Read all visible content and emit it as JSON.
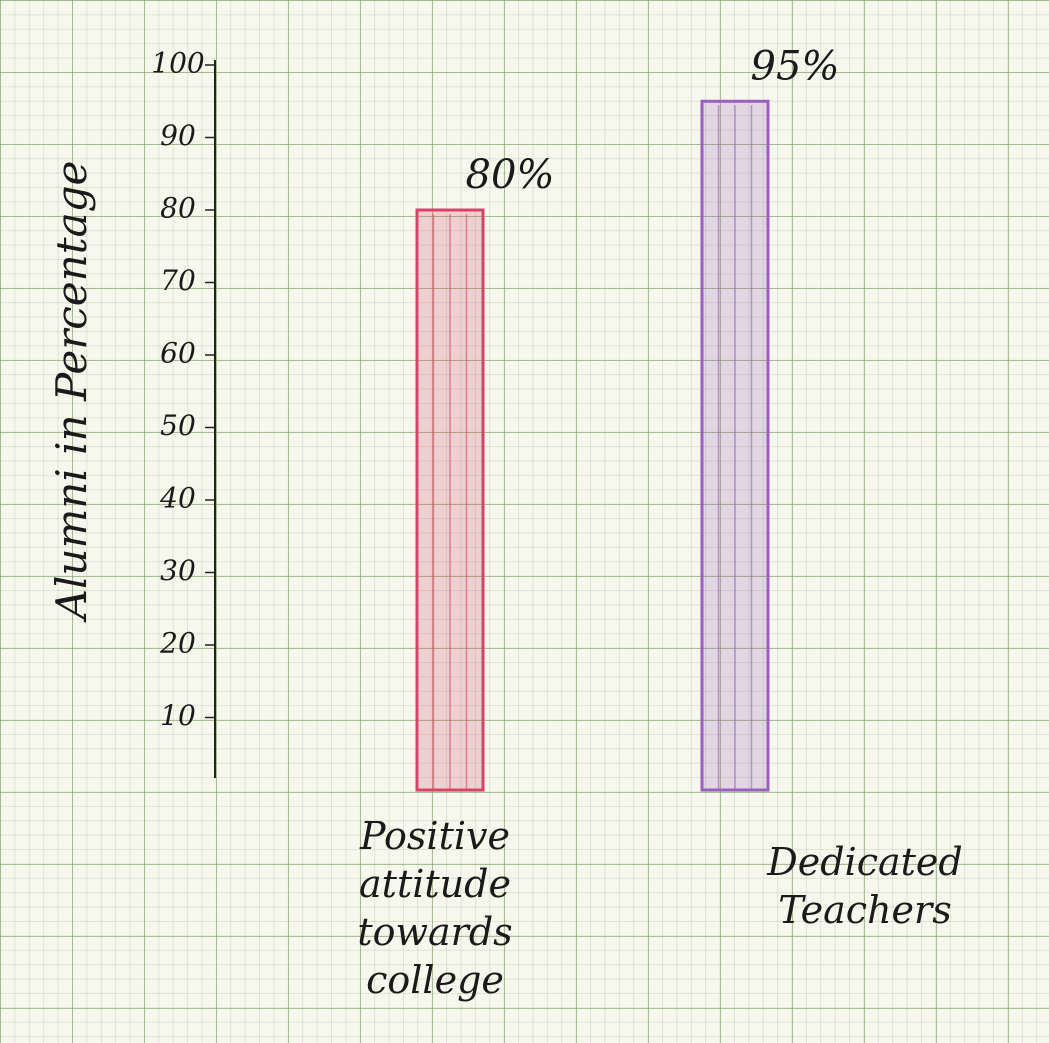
{
  "chart_data": {
    "type": "bar",
    "y_label": "Alumni in Percentage",
    "categories": [
      "Positive attitude towards college",
      "Dedicated Teachers"
    ],
    "values": [
      80,
      95
    ],
    "value_labels": [
      "80%",
      "95%"
    ],
    "colors": [
      "#d8436a",
      "#9a5fc0"
    ],
    "ylim": [
      0,
      100
    ],
    "yticks": [
      10,
      20,
      30,
      40,
      50,
      60,
      70,
      80,
      90,
      100
    ]
  }
}
